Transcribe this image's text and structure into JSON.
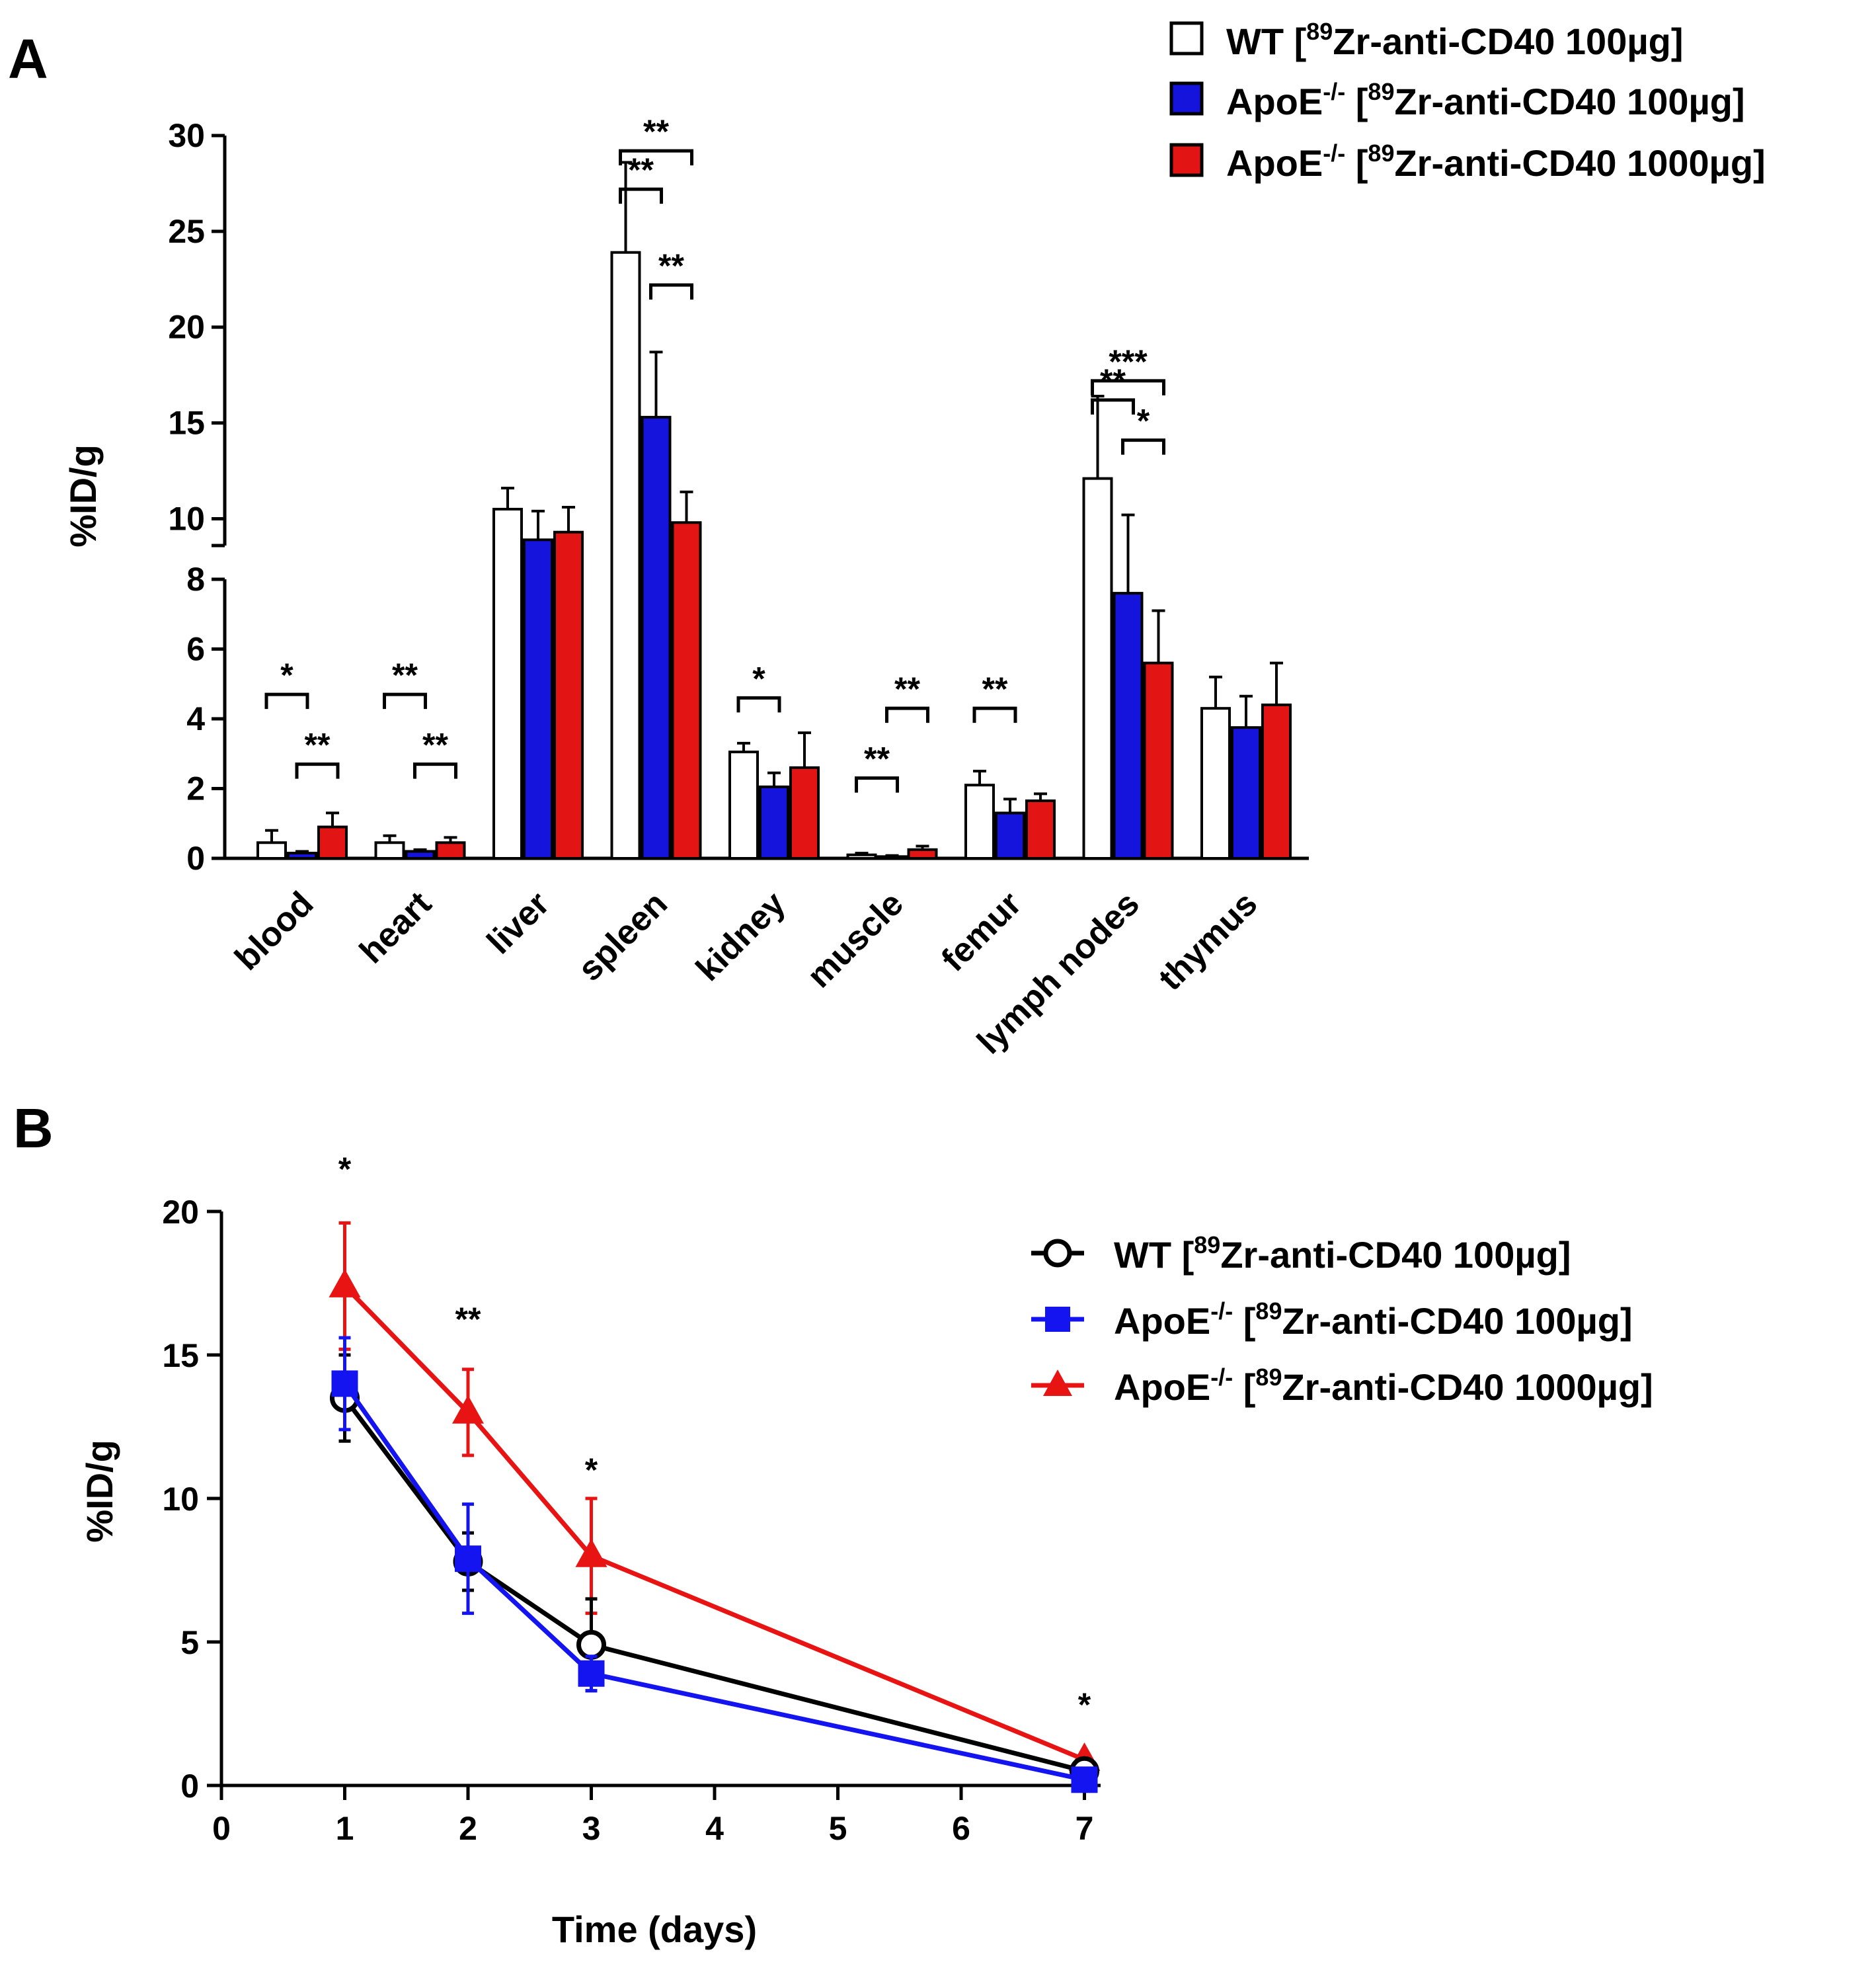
{
  "figure": {
    "panel_a_label": "A",
    "panel_b_label": "B"
  },
  "chart_data": [
    {
      "type": "bar",
      "panel": "A",
      "ylabel": "%ID/g",
      "y_axis": "broken",
      "y_ticks_lower": [
        "0",
        "2",
        "4",
        "6",
        "8"
      ],
      "y_ticks_upper": [
        "10",
        "15",
        "20",
        "25",
        "30"
      ],
      "ylim_lower": [
        0,
        8
      ],
      "ylim_upper": [
        8.6,
        30
      ],
      "legend_position": "top-right",
      "categories": [
        "blood",
        "heart",
        "liver",
        "spleen",
        "kidney",
        "muscle",
        "femur",
        "lymph nodes",
        "thymus"
      ],
      "series": [
        {
          "name": "WT",
          "dose_prefix": "[",
          "isotope_mass": "89",
          "tracer": "Zr-anti-CD40 100µg]",
          "color": "#ffffff",
          "values": [
            0.45,
            0.45,
            10.5,
            23.9,
            3.05,
            0.1,
            2.1,
            12.1,
            4.3
          ],
          "errors": [
            0.35,
            0.2,
            1.1,
            4.7,
            0.25,
            0.05,
            0.4,
            4.3,
            0.9
          ]
        },
        {
          "name": "ApoE",
          "name_superscript": "-/-",
          "dose_prefix": " [",
          "isotope_mass": "89",
          "tracer": "Zr-anti-CD40 100µg]",
          "color": "#1414dc",
          "values": [
            0.15,
            0.2,
            8.9,
            15.3,
            2.05,
            0.05,
            1.3,
            7.6,
            3.75
          ],
          "errors": [
            0.05,
            0.05,
            1.5,
            3.4,
            0.4,
            0.03,
            0.4,
            2.6,
            0.9
          ]
        },
        {
          "name": "ApoE",
          "name_superscript": "-/-",
          "dose_prefix": " [",
          "isotope_mass": "89",
          "tracer": "Zr-anti-CD40 1000µg]",
          "color": "#e31414",
          "values": [
            0.9,
            0.45,
            9.3,
            9.8,
            2.6,
            0.25,
            1.65,
            5.6,
            4.4
          ],
          "errors": [
            0.4,
            0.15,
            1.3,
            1.6,
            1.0,
            0.1,
            0.2,
            1.5,
            1.2
          ]
        }
      ],
      "significance": [
        {
          "category": "blood",
          "from_series": 0,
          "to_series": 1,
          "label": "*",
          "y": 4.7
        },
        {
          "category": "blood",
          "from_series": 1,
          "to_series": 2,
          "label": "**",
          "y": 2.7
        },
        {
          "category": "heart",
          "from_series": 0,
          "to_series": 1,
          "label": "**",
          "y": 4.7
        },
        {
          "category": "heart",
          "from_series": 1,
          "to_series": 2,
          "label": "**",
          "y": 2.7
        },
        {
          "category": "spleen",
          "from_series": 0,
          "to_series": 2,
          "label": "**",
          "y": 29.2
        },
        {
          "category": "spleen",
          "from_series": 0,
          "to_series": 1,
          "label": "**",
          "y": 27.2
        },
        {
          "category": "spleen",
          "from_series": 1,
          "to_series": 2,
          "label": "**",
          "y": 22.2
        },
        {
          "category": "kidney",
          "from_series": 0,
          "to_series": 1,
          "label": "*",
          "y": 4.6
        },
        {
          "category": "muscle",
          "from_series": 0,
          "to_series": 1,
          "label": "**",
          "y": 2.3
        },
        {
          "category": "muscle",
          "from_series": 1,
          "to_series": 2,
          "label": "**",
          "y": 4.3
        },
        {
          "category": "femur",
          "from_series": 0,
          "to_series": 1,
          "label": "**",
          "y": 4.3
        },
        {
          "category": "lymph nodes",
          "from_series": 0,
          "to_series": 2,
          "label": "***",
          "y": 17.2
        },
        {
          "category": "lymph nodes",
          "from_series": 0,
          "to_series": 1,
          "label": "**",
          "y": 16.2
        },
        {
          "category": "lymph nodes",
          "from_series": 1,
          "to_series": 2,
          "label": "*",
          "y": 14.1
        }
      ]
    },
    {
      "type": "line",
      "panel": "B",
      "xlabel": "Time (days)",
      "ylabel": "%ID/g",
      "x_tick_labels": [
        "0",
        "1",
        "2",
        "3",
        "4",
        "5",
        "6",
        "7"
      ],
      "y_tick_labels": [
        "0",
        "5",
        "10",
        "15",
        "20"
      ],
      "ylim": [
        0,
        20
      ],
      "legend_position": "right",
      "x": [
        "1",
        "2",
        "3",
        "7"
      ],
      "series": [
        {
          "name": "WT",
          "dose_prefix": " [",
          "isotope_mass": "89",
          "tracer": "Zr-anti-CD40 100µg]",
          "color": "#000000",
          "marker": "open-circle",
          "values": [
            13.5,
            7.8,
            4.9,
            0.5
          ],
          "errors": [
            1.5,
            1.0,
            1.6,
            0.2
          ]
        },
        {
          "name": "ApoE",
          "name_superscript": "-/-",
          "dose_prefix": " [",
          "isotope_mass": "89",
          "tracer": "Zr-anti-CD40 100µg]",
          "color": "#1414f0",
          "marker": "square",
          "values": [
            14.0,
            7.9,
            3.9,
            0.2
          ],
          "errors": [
            1.6,
            1.9,
            0.6,
            0.15
          ]
        },
        {
          "name": "ApoE",
          "name_superscript": "-/-",
          "dose_prefix": " [",
          "isotope_mass": "89",
          "tracer": "Zr-anti-CD40 1000µg]",
          "color": "#e81414",
          "marker": "triangle",
          "values": [
            17.4,
            13.0,
            8.0,
            0.9
          ],
          "errors": [
            2.2,
            1.5,
            2.0,
            0.1
          ]
        }
      ],
      "significance": [
        {
          "x": "1",
          "label": "*"
        },
        {
          "x": "2",
          "label": "**"
        },
        {
          "x": "3",
          "label": "*"
        },
        {
          "x": "7",
          "label": "*"
        }
      ]
    }
  ]
}
